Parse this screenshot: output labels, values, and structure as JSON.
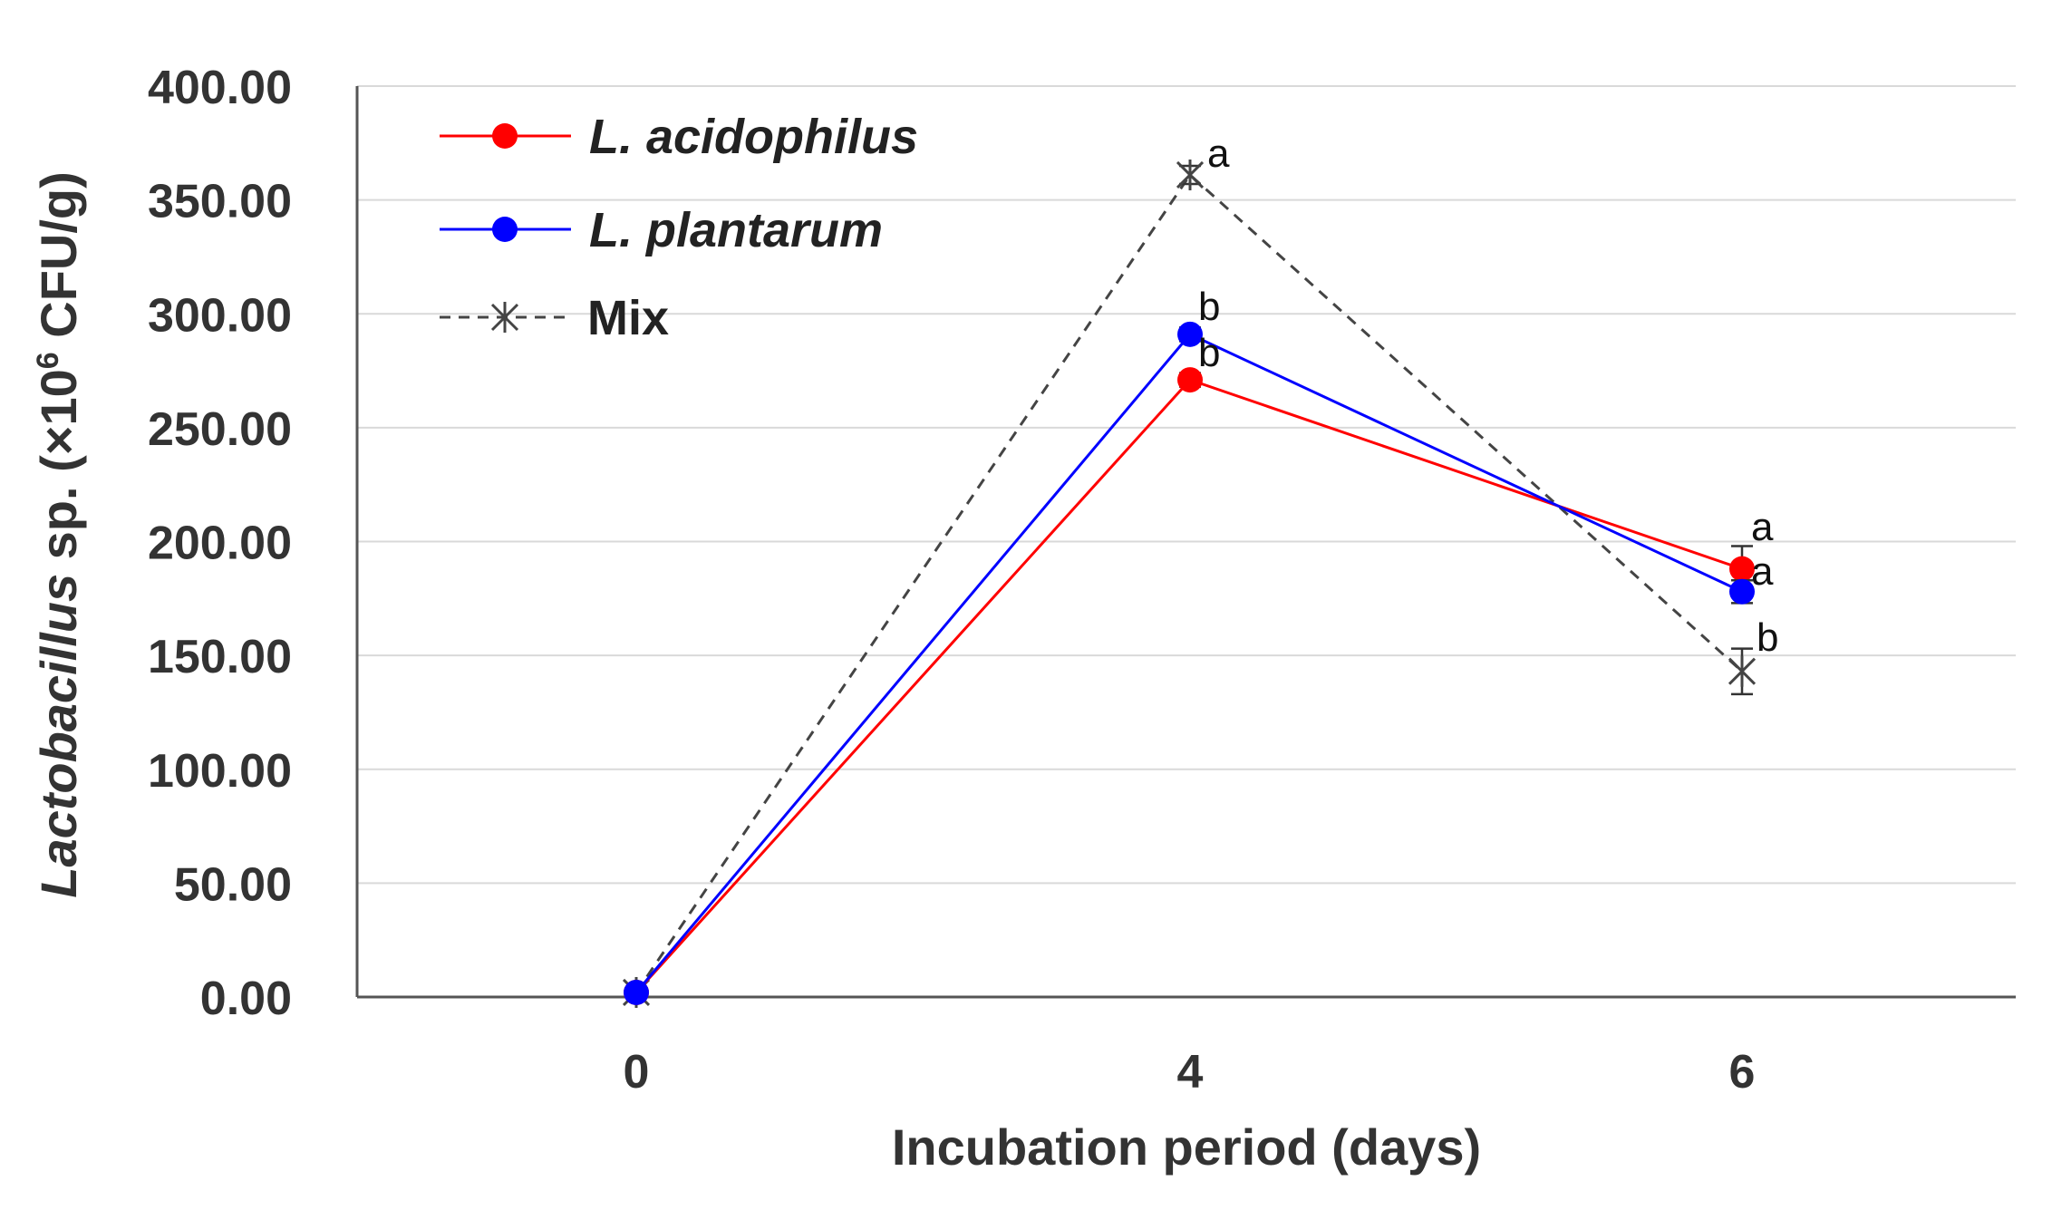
{
  "chart_data": {
    "type": "line",
    "title": "",
    "xlabel": "Incubation period (days)",
    "ylabel": {
      "italic_part": "Lactobacillus",
      "rest_before_exp": " sp. (×10",
      "exponent": "6",
      "rest_after_exp": " CFU/g)"
    },
    "x": [
      "0",
      "4",
      "6"
    ],
    "ylim": [
      0,
      400
    ],
    "yticks": [
      "0.00",
      "50.00",
      "100.00",
      "150.00",
      "200.00",
      "250.00",
      "300.00",
      "350.00",
      "400.00"
    ],
    "grid": "horizontal",
    "legend_position": "top-left",
    "series": [
      {
        "name": "L. acidophilus",
        "italic": true,
        "color": "#ff0000",
        "dash": "solid",
        "marker": "circle",
        "values": [
          2,
          271,
          188
        ],
        "error": [
          0,
          3,
          10
        ],
        "labels": [
          "",
          "b",
          "a"
        ]
      },
      {
        "name": "L. plantarum",
        "italic": true,
        "color": "#0000ff",
        "dash": "solid",
        "marker": "circle",
        "values": [
          2,
          291,
          178
        ],
        "error": [
          0,
          3,
          5
        ],
        "labels": [
          "",
          "b",
          "a"
        ]
      },
      {
        "name": "Mix",
        "italic": false,
        "color": "#444444",
        "dash": "dashed",
        "marker": "star",
        "values": [
          2,
          361,
          143
        ],
        "error": [
          0,
          4,
          10
        ],
        "labels": [
          "",
          "a",
          "b"
        ]
      }
    ]
  }
}
